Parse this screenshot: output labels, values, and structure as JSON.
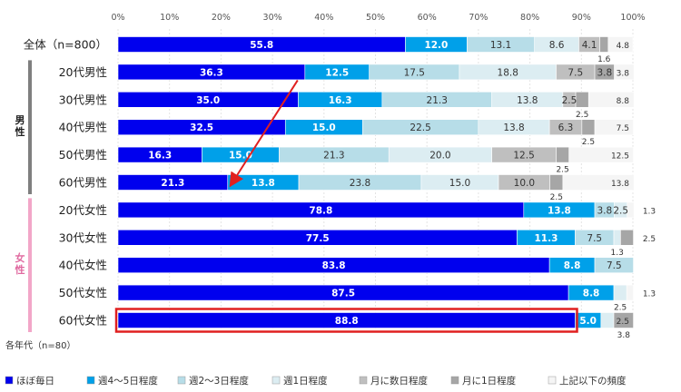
{
  "chart_data": {
    "type": "bar",
    "orientation": "horizontal",
    "stacked": true,
    "xlim": [
      0,
      100
    ],
    "x_ticks": [
      "0%",
      "10%",
      "20%",
      "30%",
      "40%",
      "50%",
      "60%",
      "70%",
      "80%",
      "90%",
      "100%"
    ],
    "groups": [
      {
        "label": "男性",
        "rows": [
          1,
          5
        ],
        "color": "#7f7f7f",
        "text_color": "#222222"
      },
      {
        "label": "女性",
        "rows": [
          6,
          10
        ],
        "color": "#f2a6c8",
        "text_color": "#e06aa0"
      }
    ],
    "categories": [
      "全体（n=800）",
      "20代男性",
      "30代男性",
      "40代男性",
      "50代男性",
      "60代男性",
      "20代女性",
      "30代女性",
      "40代女性",
      "50代女性",
      "60代女性"
    ],
    "series": [
      {
        "name": "ほぼ毎日",
        "color": "#0000ee",
        "text_color": "#ffffff",
        "bold": true,
        "values": [
          55.8,
          36.3,
          35.0,
          32.5,
          16.3,
          21.3,
          78.8,
          77.5,
          83.8,
          87.5,
          88.8
        ]
      },
      {
        "name": "週4～5日程度",
        "color": "#00a0e9",
        "text_color": "#ffffff",
        "bold": true,
        "values": [
          12.0,
          12.5,
          16.3,
          15.0,
          15.0,
          13.8,
          13.8,
          11.3,
          8.8,
          8.8,
          5.0
        ]
      },
      {
        "name": "週2～3日程度",
        "color": "#b7dde8",
        "text_color": "#333333",
        "bold": false,
        "values": [
          13.1,
          17.5,
          21.3,
          22.5,
          21.3,
          23.8,
          3.8,
          7.5,
          7.5,
          0.0,
          0.0
        ]
      },
      {
        "name": "週1日程度",
        "color": "#dcedf2",
        "text_color": "#333333",
        "bold": false,
        "values": [
          8.6,
          18.8,
          13.8,
          13.8,
          20.0,
          15.0,
          2.5,
          1.3,
          0.0,
          2.5,
          2.5
        ]
      },
      {
        "name": "月に数日程度",
        "color": "#bfbfbf",
        "text_color": "#333333",
        "bold": false,
        "values": [
          4.1,
          7.5,
          2.5,
          6.3,
          12.5,
          10.0,
          0.0,
          0.0,
          0.0,
          0.0,
          0.0
        ]
      },
      {
        "name": "月に1日程度",
        "color": "#a6a6a6",
        "text_color": "#333333",
        "bold": false,
        "values": [
          1.6,
          3.8,
          2.5,
          2.5,
          2.5,
          2.5,
          0.0,
          2.5,
          0.0,
          0.0,
          3.8
        ]
      },
      {
        "name": "上記以下の頻度",
        "color": "#f5f5f5",
        "text_color": "#333333",
        "bold": false,
        "values": [
          4.8,
          3.8,
          8.8,
          7.5,
          12.5,
          13.8,
          1.3,
          0.0,
          0.0,
          1.3,
          0.0
        ]
      }
    ],
    "value_labels": [
      {
        "row": 0,
        "series": 0,
        "text": "55.8",
        "placement": "inside"
      },
      {
        "row": 0,
        "series": 1,
        "text": "12.0",
        "placement": "inside"
      },
      {
        "row": 0,
        "series": 2,
        "text": "13.1",
        "placement": "inside"
      },
      {
        "row": 0,
        "series": 3,
        "text": "8.6",
        "placement": "inside"
      },
      {
        "row": 0,
        "series": 4,
        "text": "4.1",
        "placement": "inside"
      },
      {
        "row": 0,
        "series": 5,
        "text": "1.6",
        "placement": "below"
      },
      {
        "row": 0,
        "series": 6,
        "text": "4.8",
        "placement": "right"
      },
      {
        "row": 1,
        "series": 0,
        "text": "36.3",
        "placement": "inside"
      },
      {
        "row": 1,
        "series": 1,
        "text": "12.5",
        "placement": "inside"
      },
      {
        "row": 1,
        "series": 2,
        "text": "17.5",
        "placement": "inside"
      },
      {
        "row": 1,
        "series": 3,
        "text": "18.8",
        "placement": "inside"
      },
      {
        "row": 1,
        "series": 4,
        "text": "7.5",
        "placement": "inside"
      },
      {
        "row": 1,
        "series": 5,
        "text": "3.8",
        "placement": "inside"
      },
      {
        "row": 1,
        "series": 6,
        "text": "3.8",
        "placement": "right"
      },
      {
        "row": 2,
        "series": 0,
        "text": "35.0",
        "placement": "inside"
      },
      {
        "row": 2,
        "series": 1,
        "text": "16.3",
        "placement": "inside"
      },
      {
        "row": 2,
        "series": 2,
        "text": "21.3",
        "placement": "inside"
      },
      {
        "row": 2,
        "series": 3,
        "text": "13.8",
        "placement": "inside"
      },
      {
        "row": 2,
        "series": 4,
        "text": "2.5",
        "placement": "inside"
      },
      {
        "row": 2,
        "series": 5,
        "text": "2.5",
        "placement": "below"
      },
      {
        "row": 2,
        "series": 6,
        "text": "8.8",
        "placement": "right"
      },
      {
        "row": 3,
        "series": 0,
        "text": "32.5",
        "placement": "inside"
      },
      {
        "row": 3,
        "series": 1,
        "text": "15.0",
        "placement": "inside"
      },
      {
        "row": 3,
        "series": 2,
        "text": "22.5",
        "placement": "inside"
      },
      {
        "row": 3,
        "series": 3,
        "text": "13.8",
        "placement": "inside"
      },
      {
        "row": 3,
        "series": 4,
        "text": "6.3",
        "placement": "inside"
      },
      {
        "row": 3,
        "series": 5,
        "text": "2.5",
        "placement": "below"
      },
      {
        "row": 3,
        "series": 6,
        "text": "7.5",
        "placement": "right"
      },
      {
        "row": 4,
        "series": 0,
        "text": "16.3",
        "placement": "inside"
      },
      {
        "row": 4,
        "series": 1,
        "text": "15.0",
        "placement": "inside"
      },
      {
        "row": 4,
        "series": 2,
        "text": "21.3",
        "placement": "inside"
      },
      {
        "row": 4,
        "series": 3,
        "text": "20.0",
        "placement": "inside"
      },
      {
        "row": 4,
        "series": 4,
        "text": "12.5",
        "placement": "inside"
      },
      {
        "row": 4,
        "series": 5,
        "text": "2.5",
        "placement": "below"
      },
      {
        "row": 4,
        "series": 6,
        "text": "12.5",
        "placement": "right"
      },
      {
        "row": 5,
        "series": 0,
        "text": "21.3",
        "placement": "inside"
      },
      {
        "row": 5,
        "series": 1,
        "text": "13.8",
        "placement": "inside"
      },
      {
        "row": 5,
        "series": 2,
        "text": "23.8",
        "placement": "inside"
      },
      {
        "row": 5,
        "series": 3,
        "text": "15.0",
        "placement": "inside"
      },
      {
        "row": 5,
        "series": 4,
        "text": "10.0",
        "placement": "inside"
      },
      {
        "row": 5,
        "series": 5,
        "text": "2.5",
        "placement": "below"
      },
      {
        "row": 5,
        "series": 6,
        "text": "13.8",
        "placement": "right"
      },
      {
        "row": 6,
        "series": 0,
        "text": "78.8",
        "placement": "inside"
      },
      {
        "row": 6,
        "series": 1,
        "text": "13.8",
        "placement": "inside"
      },
      {
        "row": 6,
        "series": 2,
        "text": "3.8",
        "placement": "inside"
      },
      {
        "row": 6,
        "series": 3,
        "text": "2.5",
        "placement": "inside"
      },
      {
        "row": 6,
        "series": 6,
        "text": "1.3",
        "placement": "right_far"
      },
      {
        "row": 7,
        "series": 0,
        "text": "77.5",
        "placement": "inside"
      },
      {
        "row": 7,
        "series": 1,
        "text": "11.3",
        "placement": "inside"
      },
      {
        "row": 7,
        "series": 2,
        "text": "7.5",
        "placement": "inside"
      },
      {
        "row": 7,
        "series": 3,
        "text": "1.3",
        "placement": "below"
      },
      {
        "row": 7,
        "series": 5,
        "text": "2.5",
        "placement": "right_far"
      },
      {
        "row": 8,
        "series": 0,
        "text": "83.8",
        "placement": "inside"
      },
      {
        "row": 8,
        "series": 1,
        "text": "8.8",
        "placement": "inside"
      },
      {
        "row": 8,
        "series": 2,
        "text": "7.5",
        "placement": "inside"
      },
      {
        "row": 9,
        "series": 0,
        "text": "87.5",
        "placement": "inside"
      },
      {
        "row": 9,
        "series": 1,
        "text": "8.8",
        "placement": "inside"
      },
      {
        "row": 9,
        "series": 3,
        "text": "2.5",
        "placement": "below"
      },
      {
        "row": 9,
        "series": 6,
        "text": "1.3",
        "placement": "right_far"
      },
      {
        "row": 10,
        "series": 0,
        "text": "88.8",
        "placement": "inside"
      },
      {
        "row": 10,
        "series": 1,
        "text": "5.0",
        "placement": "inside"
      },
      {
        "row": 10,
        "series": 3,
        "text": "2.5",
        "placement": "right"
      },
      {
        "row": 10,
        "series": 5,
        "text": "3.8",
        "placement": "below"
      }
    ],
    "highlight_row": 10,
    "arrow": {
      "from": [
        36.3,
        1
      ],
      "to": [
        21.3,
        5
      ],
      "color": "#e02020"
    },
    "highlight_color": "#e02020",
    "note": "各年代（n=80）",
    "legend_position": "bottom"
  }
}
